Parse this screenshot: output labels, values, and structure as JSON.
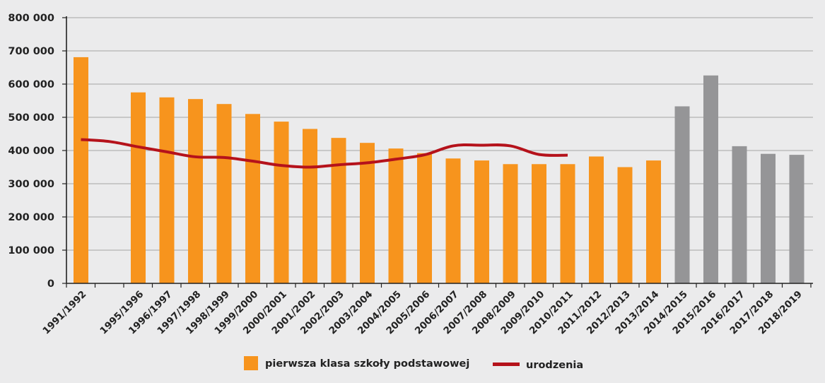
{
  "chart_data": {
    "type": "bar",
    "categories": [
      "1991/1992",
      "",
      "1995/1996",
      "1996/1997",
      "1997/1998",
      "1998/1999",
      "1999/2000",
      "2000/2001",
      "2001/2002",
      "2002/2003",
      "2003/2004",
      "2004/2005",
      "2005/2006",
      "2006/2007",
      "2007/2008",
      "2008/2009",
      "2009/2010",
      "2010/2011",
      "2011/2012",
      "2012/2013",
      "2013/2014",
      "2014/2015",
      "2015/2016",
      "2016/2017",
      "2017/2018",
      "2018/2019"
    ],
    "series": [
      {
        "name": "pierwsza klasa szkoły podstawowej",
        "type": "bar",
        "values": [
          681000,
          null,
          575000,
          560000,
          555000,
          540000,
          510000,
          487000,
          465000,
          438000,
          423000,
          406000,
          392000,
          376000,
          370000,
          359000,
          359000,
          359000,
          382000,
          350000,
          370000,
          533000,
          626000,
          413000,
          390000,
          387000
        ],
        "bar_colors": [
          "#f7941d",
          null,
          "#f7941d",
          "#f7941d",
          "#f7941d",
          "#f7941d",
          "#f7941d",
          "#f7941d",
          "#f7941d",
          "#f7941d",
          "#f7941d",
          "#f7941d",
          "#f7941d",
          "#f7941d",
          "#f7941d",
          "#f7941d",
          "#f7941d",
          "#f7941d",
          "#f7941d",
          "#f7941d",
          "#f7941d",
          "#959597",
          "#959597",
          "#959597",
          "#959597",
          "#959597"
        ]
      },
      {
        "name": "urodzenia",
        "type": "line",
        "color": "#b5121b",
        "values": [
          433000,
          427000,
          411000,
          396000,
          381000,
          379000,
          368000,
          355000,
          350000,
          357000,
          363000,
          374000,
          387000,
          414000,
          416000,
          414000,
          388000,
          386000,
          null,
          null,
          null,
          null,
          null,
          null,
          null,
          null
        ]
      }
    ],
    "ylim": [
      0,
      800000
    ],
    "yticks": [
      "0",
      "100 000",
      "200 000",
      "300 000",
      "400 000",
      "500 000",
      "600 000",
      "700 000",
      "800 000"
    ],
    "grid": true,
    "legend_position": "bottom",
    "xlabel": "",
    "ylabel": "",
    "title": ""
  },
  "colors": {
    "background": "#ebebec",
    "bar_primary": "#f7941d",
    "bar_projection": "#959597",
    "line": "#b5121b",
    "grid": "#8c8c8c",
    "axis": "#222222"
  }
}
